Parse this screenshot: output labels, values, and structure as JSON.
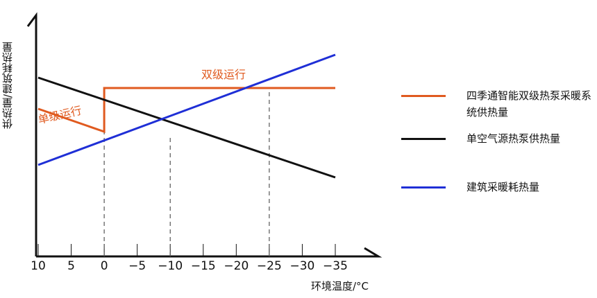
{
  "chart_data": {
    "type": "line",
    "xlabel": "环境温度/°C",
    "ylabel": "供热量/建筑耗热量",
    "x_ticks": [
      "10",
      "5",
      "0",
      "−5",
      "−10",
      "−15",
      "−20",
      "−25",
      "−30",
      "−35"
    ],
    "x_tick_values": [
      10,
      5,
      0,
      -5,
      -10,
      -15,
      -20,
      -25,
      -30,
      -35
    ],
    "xlim": [
      10,
      -35
    ],
    "ylim": [
      0,
      100
    ],
    "series": [
      {
        "name": "四季通智能双级热泵采暖系统供热量",
        "color": "#e05a1f",
        "points": [
          [
            10,
            71
          ],
          [
            0,
            60
          ],
          [
            0,
            81
          ],
          [
            -35,
            81
          ]
        ]
      },
      {
        "name": "单空气源热泵供热量",
        "color": "#111111",
        "points": [
          [
            10,
            86
          ],
          [
            -35,
            38
          ]
        ]
      },
      {
        "name": "建筑采暖耗热量",
        "color": "#1f2fd6",
        "points": [
          [
            10,
            44
          ],
          [
            -35,
            97
          ]
        ]
      }
    ],
    "reference_lines": [
      0,
      -10,
      -25
    ],
    "annotations": [
      {
        "text": "双级运行",
        "color": "#e05a1f"
      },
      {
        "text": "单级运行",
        "color": "#e05a1f"
      }
    ],
    "legend_position": "right"
  }
}
